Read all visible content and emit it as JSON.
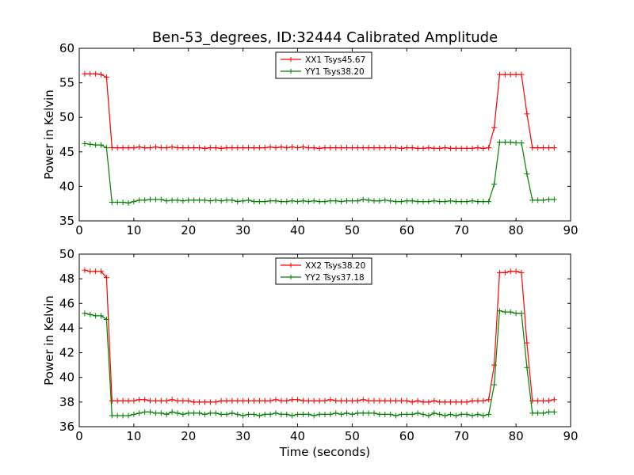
{
  "chart_title": "Ben-53_degrees, ID:32444 Calibrated Amplitude",
  "chart_data": [
    {
      "type": "line",
      "ylabel": "Power in Kelvin",
      "xlabel": "",
      "xlim": [
        0,
        90
      ],
      "ylim": [
        35,
        60
      ],
      "x_ticks": [
        "0",
        "10",
        "20",
        "30",
        "40",
        "50",
        "60",
        "70",
        "80",
        "90"
      ],
      "y_ticks": [
        "35",
        "40",
        "45",
        "50",
        "55",
        "60"
      ],
      "grid": false,
      "legend_position": "top-center",
      "x": [
        1,
        2,
        3,
        4,
        5,
        6,
        7,
        8,
        9,
        10,
        11,
        12,
        13,
        14,
        15,
        16,
        17,
        18,
        19,
        20,
        21,
        22,
        23,
        24,
        25,
        26,
        27,
        28,
        29,
        30,
        31,
        32,
        33,
        34,
        35,
        36,
        37,
        38,
        39,
        40,
        41,
        42,
        43,
        44,
        45,
        46,
        47,
        48,
        49,
        50,
        51,
        52,
        53,
        54,
        55,
        56,
        57,
        58,
        59,
        60,
        61,
        62,
        63,
        64,
        65,
        66,
        67,
        68,
        69,
        70,
        71,
        72,
        73,
        74,
        75,
        76,
        77,
        78,
        79,
        80,
        81,
        82,
        83,
        84,
        85,
        86,
        87
      ],
      "series": [
        {
          "name": "XX1 Tsys45.67",
          "color": "#ff0000",
          "values": [
            56.3,
            56.3,
            56.3,
            56.2,
            55.8,
            45.6,
            45.6,
            45.6,
            45.6,
            45.6,
            45.7,
            45.6,
            45.6,
            45.7,
            45.6,
            45.6,
            45.7,
            45.6,
            45.6,
            45.6,
            45.6,
            45.6,
            45.5,
            45.6,
            45.6,
            45.5,
            45.6,
            45.6,
            45.6,
            45.6,
            45.6,
            45.6,
            45.6,
            45.6,
            45.7,
            45.6,
            45.7,
            45.6,
            45.7,
            45.6,
            45.7,
            45.6,
            45.6,
            45.5,
            45.6,
            45.6,
            45.6,
            45.6,
            45.6,
            45.6,
            45.6,
            45.6,
            45.6,
            45.6,
            45.6,
            45.6,
            45.6,
            45.6,
            45.5,
            45.6,
            45.6,
            45.5,
            45.5,
            45.6,
            45.5,
            45.5,
            45.6,
            45.5,
            45.5,
            45.5,
            45.5,
            45.5,
            45.6,
            45.5,
            45.6,
            48.5,
            56.2,
            56.2,
            56.2,
            56.2,
            56.2,
            50.5,
            45.6,
            45.6,
            45.6,
            45.6,
            45.6
          ]
        },
        {
          "name": "YY1 Tsys38.20",
          "color": "#008000",
          "values": [
            46.2,
            46.1,
            46.0,
            46.0,
            45.6,
            37.7,
            37.7,
            37.7,
            37.6,
            37.8,
            38.0,
            38.0,
            38.1,
            38.1,
            38.1,
            37.9,
            38.0,
            38.0,
            37.9,
            38.0,
            38.0,
            38.0,
            38.0,
            37.9,
            38.0,
            37.9,
            38.0,
            38.0,
            37.8,
            37.9,
            38.0,
            37.8,
            37.8,
            37.8,
            37.9,
            37.9,
            37.8,
            37.8,
            37.9,
            37.8,
            37.9,
            37.8,
            37.9,
            37.8,
            37.8,
            37.9,
            37.9,
            37.8,
            37.9,
            37.9,
            37.9,
            38.1,
            38.0,
            37.9,
            37.9,
            38.0,
            37.9,
            37.8,
            37.8,
            37.9,
            37.9,
            37.8,
            37.8,
            37.8,
            37.9,
            37.8,
            37.8,
            37.9,
            37.8,
            37.8,
            37.8,
            37.9,
            37.8,
            37.8,
            37.8,
            40.3,
            46.4,
            46.4,
            46.4,
            46.3,
            46.3,
            41.8,
            38.0,
            38.0,
            38.0,
            38.1,
            38.1
          ]
        }
      ]
    },
    {
      "type": "line",
      "ylabel": "Power in Kelvin",
      "xlabel": "Time (seconds)",
      "xlim": [
        0,
        90
      ],
      "ylim": [
        36,
        50
      ],
      "x_ticks": [
        "0",
        "10",
        "20",
        "30",
        "40",
        "50",
        "60",
        "70",
        "80",
        "90"
      ],
      "y_ticks": [
        "36",
        "38",
        "40",
        "42",
        "44",
        "46",
        "48",
        "50"
      ],
      "grid": false,
      "legend_position": "top-center",
      "x": [
        1,
        2,
        3,
        4,
        5,
        6,
        7,
        8,
        9,
        10,
        11,
        12,
        13,
        14,
        15,
        16,
        17,
        18,
        19,
        20,
        21,
        22,
        23,
        24,
        25,
        26,
        27,
        28,
        29,
        30,
        31,
        32,
        33,
        34,
        35,
        36,
        37,
        38,
        39,
        40,
        41,
        42,
        43,
        44,
        45,
        46,
        47,
        48,
        49,
        50,
        51,
        52,
        53,
        54,
        55,
        56,
        57,
        58,
        59,
        60,
        61,
        62,
        63,
        64,
        65,
        66,
        67,
        68,
        69,
        70,
        71,
        72,
        73,
        74,
        75,
        76,
        77,
        78,
        79,
        80,
        81,
        82,
        83,
        84,
        85,
        86,
        87
      ],
      "series": [
        {
          "name": "XX2 Tsys38.20",
          "color": "#ff0000",
          "values": [
            48.7,
            48.6,
            48.6,
            48.6,
            48.1,
            38.1,
            38.1,
            38.1,
            38.1,
            38.1,
            38.2,
            38.2,
            38.1,
            38.1,
            38.1,
            38.1,
            38.2,
            38.1,
            38.1,
            38.1,
            38.0,
            38.0,
            38.0,
            38.0,
            38.0,
            38.1,
            38.1,
            38.1,
            38.1,
            38.1,
            38.1,
            38.1,
            38.1,
            38.1,
            38.1,
            38.2,
            38.1,
            38.1,
            38.2,
            38.2,
            38.1,
            38.1,
            38.1,
            38.1,
            38.1,
            38.2,
            38.1,
            38.1,
            38.1,
            38.1,
            38.1,
            38.2,
            38.1,
            38.1,
            38.1,
            38.1,
            38.1,
            38.1,
            38.1,
            38.1,
            38.0,
            38.1,
            38.0,
            38.0,
            38.1,
            38.0,
            38.0,
            38.0,
            38.0,
            38.0,
            38.0,
            38.1,
            38.1,
            38.1,
            38.2,
            41.0,
            48.5,
            48.5,
            48.6,
            48.6,
            48.5,
            42.8,
            38.1,
            38.1,
            38.1,
            38.1,
            38.2
          ]
        },
        {
          "name": "YY2 Tsys37.18",
          "color": "#008000",
          "values": [
            45.2,
            45.1,
            45.0,
            45.0,
            44.7,
            36.9,
            36.9,
            36.9,
            36.9,
            37.0,
            37.1,
            37.2,
            37.2,
            37.1,
            37.1,
            37.0,
            37.2,
            37.1,
            37.0,
            37.1,
            37.1,
            37.1,
            37.0,
            37.1,
            37.1,
            37.0,
            37.0,
            37.1,
            37.0,
            36.9,
            37.0,
            37.0,
            36.9,
            37.0,
            37.0,
            37.1,
            37.0,
            37.0,
            36.9,
            37.0,
            37.0,
            37.0,
            36.9,
            37.0,
            37.0,
            37.0,
            37.1,
            37.0,
            37.1,
            37.0,
            37.1,
            37.1,
            37.1,
            37.1,
            37.0,
            37.0,
            37.0,
            36.9,
            37.0,
            37.0,
            37.0,
            37.1,
            37.0,
            36.9,
            37.1,
            37.0,
            36.9,
            37.0,
            36.9,
            37.0,
            37.0,
            36.9,
            37.0,
            36.9,
            37.0,
            39.4,
            45.4,
            45.3,
            45.3,
            45.2,
            45.2,
            40.8,
            37.1,
            37.1,
            37.1,
            37.2,
            37.2
          ]
        }
      ]
    }
  ]
}
